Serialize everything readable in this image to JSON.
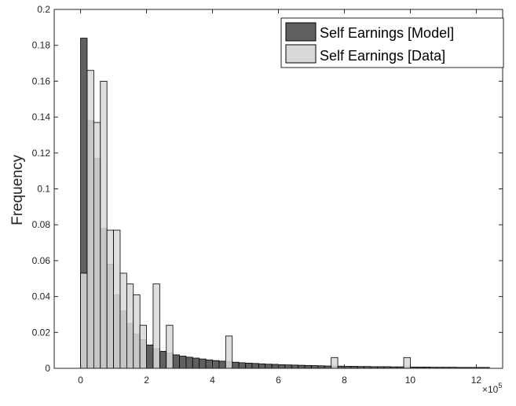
{
  "chart_data": {
    "type": "bar",
    "chart_subtype": "overlaid-histogram",
    "title": "",
    "xlabel": "",
    "ylabel": "Frequency",
    "x_exponent_label": "×10",
    "x_exponent_power": "5",
    "xlim": [
      -0.8,
      12.8
    ],
    "ylim": [
      0,
      0.2
    ],
    "bin_width": 0.2,
    "x_ticks": [
      0,
      2,
      4,
      6,
      8,
      10,
      12
    ],
    "x_tick_labels": [
      "0",
      "2",
      "4",
      "6",
      "8",
      "10",
      "12"
    ],
    "y_ticks": [
      0,
      0.02,
      0.04,
      0.06,
      0.08,
      0.1,
      0.12,
      0.14,
      0.16,
      0.18,
      0.2
    ],
    "y_tick_labels": [
      "0",
      "0.02",
      "0.04",
      "0.06",
      "0.08",
      "0.1",
      "0.12",
      "0.14",
      "0.16",
      "0.18",
      "0.2"
    ],
    "grid": false,
    "legend_position": "top-right",
    "series": [
      {
        "name": "Self Earnings [Model]",
        "color": "#606060",
        "bin_starts": [
          0,
          0.2,
          0.4,
          0.6,
          0.8,
          1.0,
          1.2,
          1.4,
          1.6,
          1.8,
          2.0,
          2.2,
          2.4,
          2.6,
          2.8,
          3.0,
          3.2,
          3.4,
          3.6,
          3.8,
          4.0,
          4.2,
          4.4,
          4.6,
          4.8,
          5.0,
          5.2,
          5.4,
          5.6,
          5.8,
          6.0,
          6.2,
          6.4,
          6.6,
          6.8,
          7.0,
          7.2,
          7.4,
          7.6,
          7.8,
          8.0,
          8.2,
          8.4,
          8.6,
          8.8,
          9.0,
          9.2,
          9.4,
          9.6,
          9.8,
          10.0,
          10.2,
          10.4,
          10.6,
          10.8,
          11.0,
          11.2,
          11.4,
          11.6,
          11.8,
          12.0,
          12.2
        ],
        "values": [
          0.184,
          0.138,
          0.117,
          0.078,
          0.058,
          0.041,
          0.032,
          0.025,
          0.019,
          0.016,
          0.013,
          0.011,
          0.0095,
          0.0085,
          0.0075,
          0.0068,
          0.0062,
          0.0057,
          0.0052,
          0.0047,
          0.0043,
          0.004,
          0.0037,
          0.0034,
          0.0031,
          0.0029,
          0.0027,
          0.0025,
          0.0023,
          0.0022,
          0.002,
          0.0019,
          0.0018,
          0.0017,
          0.0016,
          0.0015,
          0.0014,
          0.0013,
          0.0013,
          0.0012,
          0.0011,
          0.0011,
          0.001,
          0.001,
          0.0009,
          0.0009,
          0.0009,
          0.0008,
          0.0008,
          0.0008,
          0.0007,
          0.0007,
          0.0007,
          0.0006,
          0.0006,
          0.0006,
          0.0006,
          0.0005,
          0.0005,
          0.0005,
          0.0005,
          0.0005
        ]
      },
      {
        "name": "Self Earnings [Data]",
        "color": "#d9d9d9",
        "bin_starts": [
          0,
          0.2,
          0.4,
          0.6,
          0.8,
          1.0,
          1.2,
          1.4,
          1.6,
          1.8,
          2.2,
          2.6,
          4.4,
          7.6,
          9.8
        ],
        "values": [
          0.053,
          0.166,
          0.137,
          0.16,
          0.077,
          0.077,
          0.053,
          0.047,
          0.041,
          0.024,
          0.047,
          0.024,
          0.018,
          0.006,
          0.006
        ]
      }
    ]
  }
}
